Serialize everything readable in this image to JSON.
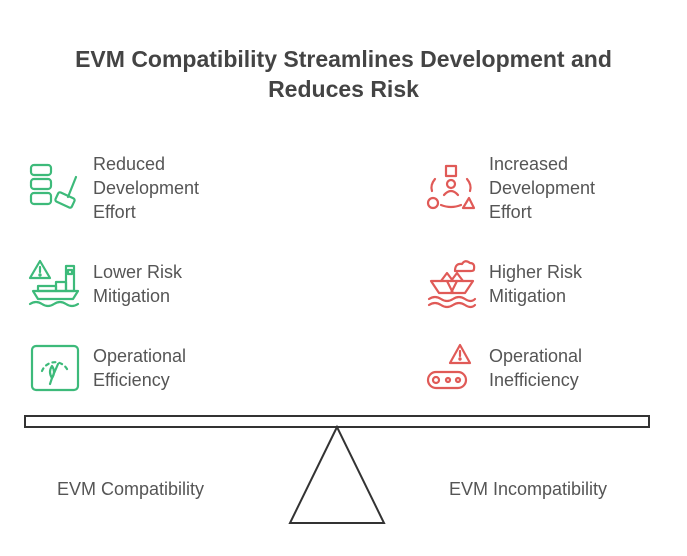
{
  "title_line1": "EVM Compatibility Streamlines Development and",
  "title_line2": "Reduces Risk",
  "left": {
    "name": "EVM Compatibility",
    "color": "#3dba7a",
    "items": [
      {
        "line1": "Reduced",
        "line2": "Development",
        "line3": "Effort",
        "icon": "blocks-and-hammer-icon"
      },
      {
        "line1": "Lower Risk",
        "line2": "Mitigation",
        "icon": "warning-boat-icon"
      },
      {
        "line1": "Operational",
        "line2": "Efficiency",
        "icon": "gauge-icon"
      }
    ]
  },
  "right": {
    "name": "EVM Incompatibility",
    "color": "#e05a57",
    "items": [
      {
        "line1": "Increased",
        "line2": "Development",
        "line3": "Effort",
        "icon": "person-shapes-icon"
      },
      {
        "line1": "Higher Risk",
        "line2": "Mitigation",
        "icon": "sinking-boat-icon"
      },
      {
        "line1": "Operational",
        "line2": "Inefficiency",
        "icon": "warning-conveyor-icon"
      }
    ]
  }
}
